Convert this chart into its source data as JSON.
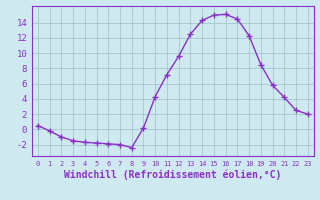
{
  "x": [
    0,
    1,
    2,
    3,
    4,
    5,
    6,
    7,
    8,
    9,
    10,
    11,
    12,
    13,
    14,
    15,
    16,
    17,
    18,
    19,
    20,
    21,
    22,
    23
  ],
  "y": [
    0.5,
    -0.2,
    -1.0,
    -1.5,
    -1.7,
    -1.8,
    -1.9,
    -2.0,
    -2.4,
    0.2,
    4.3,
    7.2,
    9.6,
    12.5,
    14.3,
    15.0,
    15.1,
    14.5,
    12.3,
    8.5,
    5.8,
    4.2,
    2.5,
    2.0
  ],
  "line_color": "#8b2fc9",
  "marker_color": "#8b2fc9",
  "bg_color": "#ceeaf0",
  "grid_color": "#9bbfc8",
  "axis_color": "#8b2fc9",
  "tick_color": "#8b2fc9",
  "xlabel": "Windchill (Refroidissement éolien,°C)",
  "xlim": [
    -0.5,
    23.5
  ],
  "ylim": [
    -3.5,
    16.2
  ],
  "yticks": [
    -2,
    0,
    2,
    4,
    6,
    8,
    10,
    12,
    14
  ],
  "xticks": [
    0,
    1,
    2,
    3,
    4,
    5,
    6,
    7,
    8,
    9,
    10,
    11,
    12,
    13,
    14,
    15,
    16,
    17,
    18,
    19,
    20,
    21,
    22,
    23
  ],
  "font_size": 6.5,
  "xlabel_font_size": 7,
  "marker_size": 2.5,
  "linewidth": 1.0
}
